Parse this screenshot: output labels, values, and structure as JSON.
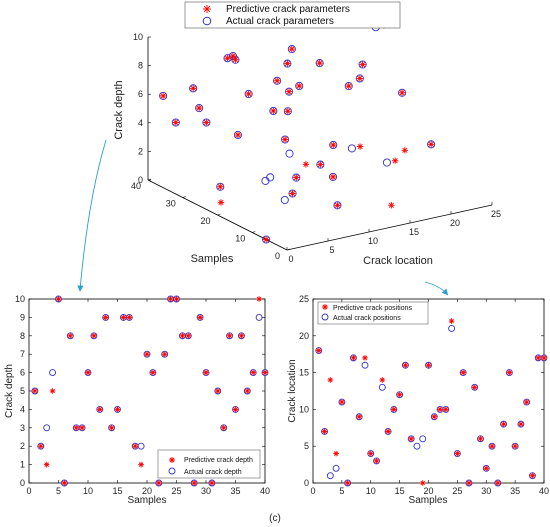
{
  "caption": "(c)",
  "colors": {
    "predicted": "#ff0000",
    "actual": "#3333cc",
    "arrow": "#2a9fd0"
  },
  "chart_data": [
    {
      "type": "scatter",
      "xlabel": "Samples",
      "ylabel": "Crack location",
      "zlabel": "Crack depth",
      "xlim": [
        0,
        40
      ],
      "ylim": [
        0,
        25
      ],
      "zlim": [
        0,
        10
      ],
      "x_ticks": [
        "0",
        "10",
        "20",
        "30",
        "40"
      ],
      "y_ticks": [
        "0",
        "5",
        "10",
        "15",
        "20",
        "25"
      ],
      "z_ticks": [
        "0",
        "2",
        "4",
        "6",
        "8",
        "10"
      ],
      "legend": {
        "predicted": "Predictive crack parameters",
        "actual": "Actual crack parameters",
        "placement": "top"
      },
      "series": [
        {
          "name": "Predictive crack parameters",
          "marker": "asterisk",
          "points": [
            [
              1,
              18,
              5
            ],
            [
              2,
              7,
              2
            ],
            [
              3,
              14,
              1
            ],
            [
              4,
              4,
              5
            ],
            [
              5,
              11,
              10
            ],
            [
              6,
              0,
              0
            ],
            [
              7,
              17,
              8
            ],
            [
              8,
              9,
              3
            ],
            [
              9,
              17,
              3
            ],
            [
              10,
              4,
              6
            ],
            [
              11,
              3,
              8
            ],
            [
              12,
              14,
              4
            ],
            [
              13,
              7,
              9
            ],
            [
              14,
              10,
              3
            ],
            [
              15,
              12,
              4
            ],
            [
              16,
              16,
              9
            ],
            [
              17,
              6,
              9
            ],
            [
              18,
              22,
              2
            ],
            [
              19,
              0,
              1
            ],
            [
              20,
              16,
              7
            ],
            [
              21,
              9,
              6
            ],
            [
              22,
              10,
              0
            ],
            [
              23,
              10,
              7
            ],
            [
              24,
              22,
              10
            ],
            [
              25,
              4,
              10
            ],
            [
              26,
              15,
              8
            ],
            [
              27,
              0,
              8
            ],
            [
              28,
              13,
              0
            ],
            [
              29,
              6,
              9
            ],
            [
              30,
              2,
              6
            ],
            [
              31,
              5,
              0
            ],
            [
              32,
              0,
              5
            ],
            [
              33,
              8,
              3
            ],
            [
              34,
              15,
              8
            ],
            [
              35,
              5,
              4
            ],
            [
              36,
              8,
              8
            ],
            [
              37,
              11,
              5
            ],
            [
              38,
              1,
              6
            ],
            [
              39,
              17,
              10
            ],
            [
              40,
              17,
              6
            ]
          ]
        },
        {
          "name": "Actual crack parameters",
          "marker": "circle",
          "points": [
            [
              1,
              18,
              5
            ],
            [
              2,
              7,
              2
            ],
            [
              3,
              1,
              3
            ],
            [
              4,
              2,
              6
            ],
            [
              5,
              11,
              10
            ],
            [
              6,
              0,
              0
            ],
            [
              7,
              17,
              8
            ],
            [
              8,
              9,
              3
            ],
            [
              9,
              16,
              3
            ],
            [
              10,
              4,
              6
            ],
            [
              11,
              3,
              8
            ],
            [
              12,
              13,
              4
            ],
            [
              13,
              7,
              9
            ],
            [
              14,
              10,
              3
            ],
            [
              15,
              12,
              4
            ],
            [
              16,
              16,
              9
            ],
            [
              17,
              6,
              9
            ],
            [
              18,
              5,
              2
            ],
            [
              19,
              6,
              2
            ],
            [
              20,
              16,
              7
            ],
            [
              21,
              9,
              6
            ],
            [
              22,
              10,
              0
            ],
            [
              23,
              10,
              7
            ],
            [
              24,
              21,
              10
            ],
            [
              25,
              4,
              10
            ],
            [
              26,
              15,
              8
            ],
            [
              27,
              0,
              8
            ],
            [
              28,
              13,
              0
            ],
            [
              29,
              6,
              9
            ],
            [
              30,
              2,
              6
            ],
            [
              31,
              5,
              0
            ],
            [
              32,
              0,
              5
            ],
            [
              33,
              8,
              3
            ],
            [
              34,
              15,
              8
            ],
            [
              35,
              5,
              4
            ],
            [
              36,
              8,
              8
            ],
            [
              37,
              11,
              5
            ],
            [
              38,
              1,
              6
            ],
            [
              39,
              17,
              9
            ],
            [
              40,
              17,
              6
            ]
          ]
        }
      ]
    },
    {
      "type": "scatter",
      "xlabel": "Samples",
      "ylabel": "Crack depth",
      "xlim": [
        0,
        40
      ],
      "ylim": [
        0,
        10
      ],
      "x_ticks": [
        "0",
        "5",
        "10",
        "15",
        "20",
        "25",
        "30",
        "35",
        "40"
      ],
      "y_ticks": [
        "0",
        "1",
        "2",
        "3",
        "4",
        "5",
        "6",
        "7",
        "8",
        "9",
        "10"
      ],
      "legend": {
        "predicted": "Predictive crack depth",
        "actual": "Actual crack depth",
        "placement": "bottom-right"
      },
      "x": [
        1,
        2,
        3,
        4,
        5,
        6,
        7,
        8,
        9,
        10,
        11,
        12,
        13,
        14,
        15,
        16,
        17,
        18,
        19,
        20,
        21,
        22,
        23,
        24,
        25,
        26,
        27,
        28,
        29,
        30,
        31,
        32,
        33,
        34,
        35,
        36,
        37,
        38,
        39,
        40
      ],
      "series": [
        {
          "name": "Predictive crack depth",
          "marker": "asterisk",
          "values": [
            5,
            2,
            1,
            5,
            10,
            0,
            8,
            3,
            3,
            6,
            8,
            4,
            9,
            3,
            4,
            9,
            9,
            2,
            1,
            7,
            6,
            0,
            7,
            10,
            10,
            8,
            8,
            0,
            9,
            6,
            0,
            5,
            3,
            8,
            4,
            8,
            5,
            6,
            10,
            6
          ]
        },
        {
          "name": "Actual crack depth",
          "marker": "circle",
          "values": [
            5,
            2,
            3,
            6,
            10,
            0,
            8,
            3,
            3,
            6,
            8,
            4,
            9,
            3,
            4,
            9,
            9,
            2,
            2,
            7,
            6,
            0,
            7,
            10,
            10,
            8,
            8,
            0,
            9,
            6,
            0,
            5,
            3,
            8,
            4,
            8,
            5,
            6,
            9,
            6
          ]
        }
      ]
    },
    {
      "type": "scatter",
      "xlabel": "Samples",
      "ylabel": "Crack location",
      "xlim": [
        0,
        40
      ],
      "ylim": [
        0,
        25
      ],
      "x_ticks": [
        "0",
        "5",
        "10",
        "15",
        "20",
        "25",
        "30",
        "35",
        "40"
      ],
      "y_ticks": [
        "0",
        "5",
        "10",
        "15",
        "20",
        "25"
      ],
      "legend": {
        "predicted": "Predictive crack positions",
        "actual": "Actual crack positions",
        "placement": "top-left"
      },
      "x": [
        1,
        2,
        3,
        4,
        5,
        6,
        7,
        8,
        9,
        10,
        11,
        12,
        13,
        14,
        15,
        16,
        17,
        18,
        19,
        20,
        21,
        22,
        23,
        24,
        25,
        26,
        27,
        28,
        29,
        30,
        31,
        32,
        33,
        34,
        35,
        36,
        37,
        38,
        39,
        40
      ],
      "series": [
        {
          "name": "Predictive crack positions",
          "marker": "asterisk",
          "values": [
            18,
            7,
            14,
            4,
            11,
            0,
            17,
            9,
            17,
            4,
            3,
            14,
            7,
            10,
            12,
            16,
            6,
            22,
            0,
            16,
            9,
            10,
            10,
            22,
            4,
            15,
            0,
            13,
            6,
            2,
            5,
            0,
            8,
            15,
            5,
            8,
            11,
            1,
            17,
            17
          ]
        },
        {
          "name": "Actual crack positions",
          "marker": "circle",
          "values": [
            18,
            7,
            1,
            2,
            11,
            0,
            17,
            9,
            16,
            4,
            3,
            13,
            7,
            10,
            12,
            16,
            6,
            5,
            6,
            16,
            9,
            10,
            10,
            21,
            4,
            15,
            0,
            13,
            6,
            2,
            5,
            0,
            8,
            15,
            5,
            8,
            11,
            1,
            17,
            17
          ]
        }
      ]
    }
  ]
}
